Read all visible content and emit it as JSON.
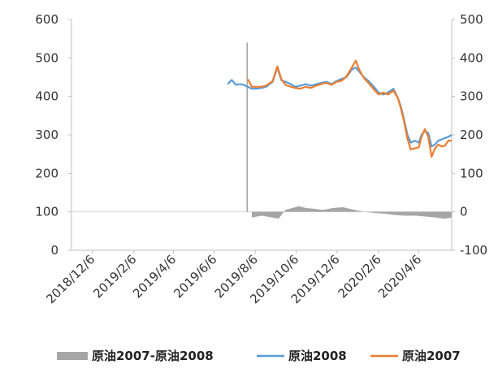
{
  "chart_data": {
    "type": "line",
    "title": "",
    "xlabel": "",
    "ylabel": "",
    "x_tick_labels": [
      "2018/12/6",
      "2019/2/6",
      "2019/4/6",
      "2019/6/6",
      "2019/8/6",
      "2019/10/6",
      "2019/12/6",
      "2020/2/6",
      "2020/4/6"
    ],
    "x_range": [
      "2018/11/5",
      "2020/5/25"
    ],
    "y_left": {
      "ticks": [
        "0",
        "100",
        "200",
        "300",
        "400",
        "500",
        "600"
      ],
      "range": [
        0,
        600
      ]
    },
    "y_right": {
      "ticks": [
        "-100",
        "0",
        "100",
        "200",
        "300",
        "400",
        "500"
      ],
      "range": [
        -100,
        500
      ]
    },
    "legend_position": "bottom",
    "grid": false,
    "colors": {
      "spread": "#a6a6a6",
      "c2008": "#5b9bd5",
      "c2007": "#ed7d31"
    },
    "series": [
      {
        "name": "原油2007-原油2008",
        "axis": "right",
        "type": "bar",
        "x": [
          "2019/7/25",
          "2019/8/1",
          "2019/8/15",
          "2019/9/1",
          "2019/9/10",
          "2019/9/20",
          "2019/10/1",
          "2019/10/10",
          "2019/10/20",
          "2019/11/1",
          "2019/11/15",
          "2019/12/1",
          "2019/12/15",
          "2020/1/1",
          "2020/1/15",
          "2020/2/1",
          "2020/2/15",
          "2020/3/1",
          "2020/3/15",
          "2020/4/1",
          "2020/4/15",
          "2020/5/1",
          "2020/5/15",
          "2020/5/25"
        ],
        "values": [
          440,
          -15,
          -10,
          -15,
          -18,
          5,
          10,
          15,
          10,
          8,
          5,
          10,
          12,
          5,
          0,
          -3,
          -5,
          -8,
          -10,
          -10,
          -12,
          -15,
          -18,
          -15
        ]
      },
      {
        "name": "原油2008",
        "axis": "left",
        "x": [
          "2019/6/26",
          "2019/7/2",
          "2019/7/8",
          "2019/7/14",
          "2019/7/20",
          "2019/7/26",
          "2019/8/1",
          "2019/8/8",
          "2019/8/15",
          "2019/8/22",
          "2019/9/1",
          "2019/9/8",
          "2019/9/14",
          "2019/9/20",
          "2019/9/28",
          "2019/10/5",
          "2019/10/12",
          "2019/10/20",
          "2019/10/28",
          "2019/11/5",
          "2019/11/12",
          "2019/11/20",
          "2019/11/28",
          "2019/12/5",
          "2019/12/12",
          "2019/12/20",
          "2019/12/28",
          "2020/1/3",
          "2020/1/8",
          "2020/1/15",
          "2020/1/22",
          "2020/1/30",
          "2020/2/6",
          "2020/2/13",
          "2020/2/20",
          "2020/2/28",
          "2020/3/6",
          "2020/3/10",
          "2020/3/15",
          "2020/3/20",
          "2020/3/25",
          "2020/3/31",
          "2020/4/6",
          "2020/4/10",
          "2020/4/15",
          "2020/4/20",
          "2020/4/25",
          "2020/4/30",
          "2020/5/5",
          "2020/5/10",
          "2020/5/15",
          "2020/5/20",
          "2020/5/25"
        ],
        "values": [
          432,
          443,
          430,
          432,
          430,
          425,
          420,
          420,
          422,
          425,
          438,
          475,
          442,
          438,
          432,
          425,
          428,
          432,
          428,
          432,
          435,
          438,
          432,
          440,
          445,
          450,
          470,
          475,
          465,
          450,
          440,
          425,
          410,
          405,
          410,
          420,
          395,
          375,
          340,
          300,
          280,
          285,
          280,
          300,
          310,
          305,
          270,
          275,
          285,
          288,
          292,
          295,
          300
        ]
      },
      {
        "name": "原油2007",
        "axis": "left",
        "x": [
          "2019/7/26",
          "2019/8/1",
          "2019/8/8",
          "2019/8/15",
          "2019/8/22",
          "2019/9/1",
          "2019/9/8",
          "2019/9/14",
          "2019/9/20",
          "2019/9/28",
          "2019/10/5",
          "2019/10/12",
          "2019/10/20",
          "2019/10/28",
          "2019/11/5",
          "2019/11/12",
          "2019/11/20",
          "2019/11/28",
          "2019/12/5",
          "2019/12/12",
          "2019/12/20",
          "2019/12/28",
          "2020/1/3",
          "2020/1/8",
          "2020/1/15",
          "2020/1/22",
          "2020/1/30",
          "2020/2/6",
          "2020/2/13",
          "2020/2/20",
          "2020/2/28",
          "2020/3/6",
          "2020/3/10",
          "2020/3/15",
          "2020/3/20",
          "2020/3/25",
          "2020/3/31",
          "2020/4/6",
          "2020/4/10",
          "2020/4/15",
          "2020/4/20",
          "2020/4/25",
          "2020/4/30",
          "2020/5/5",
          "2020/5/10",
          "2020/5/15",
          "2020/5/20",
          "2020/5/25"
        ],
        "values": [
          445,
          425,
          425,
          425,
          428,
          440,
          478,
          445,
          430,
          425,
          422,
          420,
          425,
          422,
          428,
          432,
          435,
          430,
          438,
          440,
          452,
          475,
          493,
          470,
          448,
          435,
          418,
          405,
          410,
          405,
          415,
          395,
          370,
          335,
          290,
          262,
          265,
          268,
          295,
          315,
          295,
          243,
          265,
          275,
          270,
          272,
          285,
          285
        ]
      }
    ]
  }
}
